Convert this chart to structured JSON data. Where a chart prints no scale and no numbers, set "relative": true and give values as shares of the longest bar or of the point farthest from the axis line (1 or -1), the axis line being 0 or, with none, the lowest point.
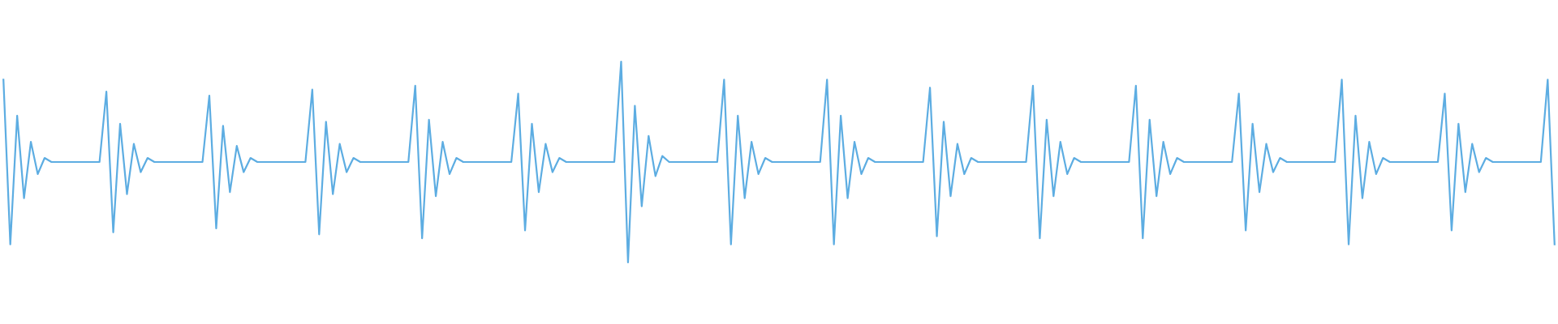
{
  "chart_data": {
    "type": "line",
    "relative": true,
    "marker": "none",
    "line_style": "solid",
    "categories": [
      null,
      null,
      null,
      null,
      null,
      null,
      null,
      null,
      null,
      null,
      null,
      null,
      null,
      null,
      null,
      null,
      null,
      null,
      null,
      null,
      null,
      null,
      null,
      null,
      null,
      null,
      null,
      null,
      null,
      null,
      null,
      null,
      null,
      null,
      null,
      null,
      null,
      null,
      null,
      null,
      null,
      null,
      null,
      null,
      null,
      null,
      null,
      null,
      null,
      null,
      null,
      null,
      null,
      null,
      null,
      null,
      null,
      null,
      null,
      null,
      null,
      null,
      null,
      null,
      null,
      null,
      null,
      null,
      null,
      null,
      null,
      null,
      null,
      null,
      null,
      null,
      null,
      null,
      null,
      null,
      null,
      null,
      null,
      null,
      null,
      null,
      null,
      null,
      null,
      null,
      null,
      null,
      null,
      null,
      null,
      null,
      null,
      null,
      null,
      null,
      null,
      null,
      null,
      null,
      null,
      null,
      null,
      null,
      null,
      null,
      null,
      null,
      null,
      null,
      null,
      null,
      null,
      null,
      null,
      null,
      null,
      null,
      null,
      null,
      null,
      null,
      null,
      null,
      null,
      null,
      null,
      null,
      null,
      null,
      null,
      null,
      null,
      null,
      null,
      null,
      null,
      null,
      null,
      null,
      null,
      null,
      null,
      null,
      null,
      null,
      null,
      null,
      null,
      null,
      null,
      null,
      null,
      null,
      null,
      null,
      null,
      null,
      null,
      null,
      null,
      null,
      null,
      null,
      null,
      null,
      null,
      null,
      null,
      null,
      null,
      null,
      null,
      null,
      null,
      null,
      null,
      null,
      null,
      null,
      null,
      null,
      null,
      null,
      null,
      null,
      null,
      null,
      null,
      null,
      null,
      null,
      null,
      null,
      null,
      null,
      null,
      null,
      null,
      null,
      null,
      null,
      null,
      null,
      null,
      null,
      null,
      null,
      null,
      null,
      null,
      null,
      null,
      null,
      null,
      null,
      null,
      null,
      null,
      null,
      null,
      null,
      null
    ],
    "series": [
      {
        "color": "#5dade2",
        "values": [
          0.91,
          0.09,
          0.73,
          0.32,
          0.6,
          0.44,
          0.52,
          0.5,
          0.5,
          0.5,
          0.5,
          0.5,
          0.5,
          0.5,
          0.5,
          0.85,
          0.15,
          0.69,
          0.34,
          0.59,
          0.45,
          0.52,
          0.5,
          0.5,
          0.5,
          0.5,
          0.5,
          0.5,
          0.5,
          0.5,
          0.83,
          0.17,
          0.68,
          0.35,
          0.58,
          0.45,
          0.52,
          0.5,
          0.5,
          0.5,
          0.5,
          0.5,
          0.5,
          0.5,
          0.5,
          0.86,
          0.14,
          0.7,
          0.34,
          0.59,
          0.45,
          0.52,
          0.5,
          0.5,
          0.5,
          0.5,
          0.5,
          0.5,
          0.5,
          0.5,
          0.88,
          0.12,
          0.71,
          0.33,
          0.6,
          0.44,
          0.52,
          0.5,
          0.5,
          0.5,
          0.5,
          0.5,
          0.5,
          0.5,
          0.5,
          0.84,
          0.16,
          0.69,
          0.35,
          0.59,
          0.45,
          0.52,
          0.5,
          0.5,
          0.5,
          0.5,
          0.5,
          0.5,
          0.5,
          0.5,
          1.0,
          0.0,
          0.78,
          0.28,
          0.63,
          0.43,
          0.53,
          0.5,
          0.5,
          0.5,
          0.5,
          0.5,
          0.5,
          0.5,
          0.5,
          0.91,
          0.09,
          0.73,
          0.32,
          0.6,
          0.44,
          0.52,
          0.5,
          0.5,
          0.5,
          0.5,
          0.5,
          0.5,
          0.5,
          0.5,
          0.91,
          0.09,
          0.73,
          0.32,
          0.6,
          0.44,
          0.52,
          0.5,
          0.5,
          0.5,
          0.5,
          0.5,
          0.5,
          0.5,
          0.5,
          0.87,
          0.13,
          0.7,
          0.33,
          0.59,
          0.44,
          0.52,
          0.5,
          0.5,
          0.5,
          0.5,
          0.5,
          0.5,
          0.5,
          0.5,
          0.88,
          0.12,
          0.71,
          0.33,
          0.6,
          0.44,
          0.52,
          0.5,
          0.5,
          0.5,
          0.5,
          0.5,
          0.5,
          0.5,
          0.5,
          0.88,
          0.12,
          0.71,
          0.33,
          0.6,
          0.44,
          0.52,
          0.5,
          0.5,
          0.5,
          0.5,
          0.5,
          0.5,
          0.5,
          0.5,
          0.84,
          0.16,
          0.69,
          0.35,
          0.59,
          0.45,
          0.52,
          0.5,
          0.5,
          0.5,
          0.5,
          0.5,
          0.5,
          0.5,
          0.5,
          0.91,
          0.09,
          0.73,
          0.32,
          0.6,
          0.44,
          0.52,
          0.5,
          0.5,
          0.5,
          0.5,
          0.5,
          0.5,
          0.5,
          0.5,
          0.84,
          0.16,
          0.69,
          0.35,
          0.59,
          0.45,
          0.52,
          0.5,
          0.5,
          0.5,
          0.5,
          0.5,
          0.5,
          0.5,
          0.5,
          0.91,
          0.09
        ]
      }
    ]
  }
}
